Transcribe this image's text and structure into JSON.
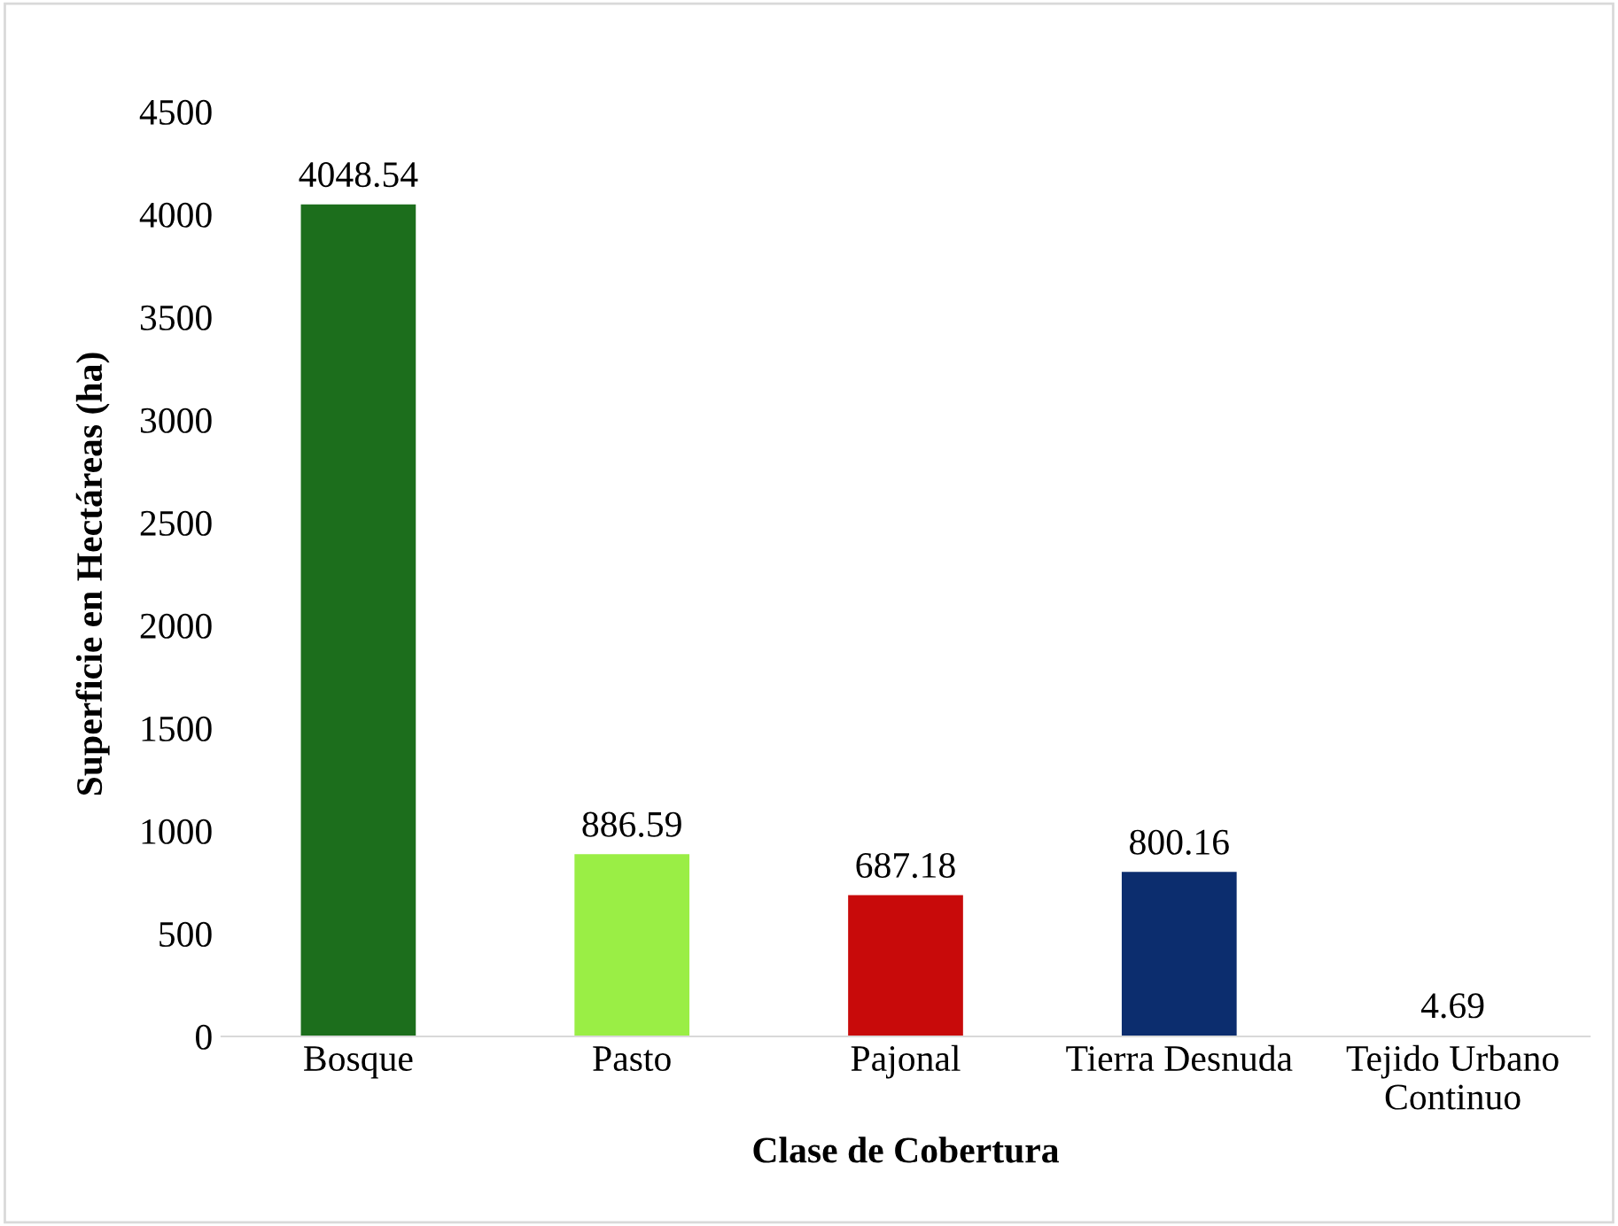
{
  "chart_data": {
    "type": "bar",
    "xlabel": "Clase de Cobertura",
    "ylabel": "Superficie en Hectáreas (ha)",
    "categories": [
      "Bosque",
      "Pasto",
      "Pajonal",
      "Tierra Desnuda",
      "Tejido Urbano\nContinuo"
    ],
    "values": [
      4048.54,
      886.59,
      687.18,
      800.16,
      4.69
    ],
    "colors": [
      "#1c6e1c",
      "#9aee45",
      "#c80a0a",
      "#0c2d6e",
      "#f2f200"
    ],
    "ylim": [
      0,
      4500
    ],
    "yticks": [
      0,
      500,
      1000,
      1500,
      2000,
      2500,
      3000,
      3500,
      4000,
      4500
    ],
    "data_labels": true,
    "grid": false,
    "legend": false
  }
}
